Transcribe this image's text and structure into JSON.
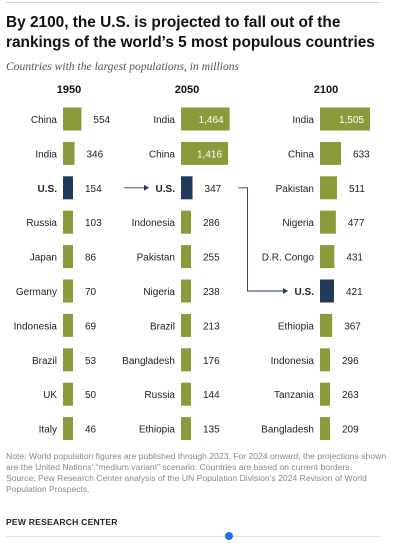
{
  "title": "By 2100, the U.S. is projected to fall out of the rankings of the world’s 5 most populous countries",
  "subtitle": "Countries with the largest populations, in millions",
  "colors": {
    "bar": "#8c9a3c",
    "us_bar": "#1f3a5c",
    "label_in_bar": "#ffffff",
    "arrow": "#1f3a5c"
  },
  "chart_data": {
    "type": "bar",
    "panels": [
      {
        "year": "1950",
        "countries": [
          "China",
          "India",
          "U.S.",
          "Russia",
          "Japan",
          "Germany",
          "Indonesia",
          "Brazil",
          "UK",
          "Italy"
        ],
        "values": [
          554,
          346,
          154,
          103,
          86,
          70,
          69,
          53,
          50,
          46
        ]
      },
      {
        "year": "2050",
        "countries": [
          "India",
          "China",
          "U.S.",
          "Indonesia",
          "Pakistan",
          "Nigeria",
          "Brazil",
          "Bangladesh",
          "Russia",
          "Ethiopia"
        ],
        "values": [
          1464,
          1416,
          347,
          286,
          255,
          238,
          213,
          176,
          144,
          135
        ]
      },
      {
        "year": "2100",
        "countries": [
          "India",
          "China",
          "Pakistan",
          "Nigeria",
          "D.R. Congo",
          "U.S.",
          "Ethiopia",
          "Indonesia",
          "Tanzania",
          "Bangladesh"
        ],
        "values": [
          1505,
          633,
          511,
          477,
          431,
          421,
          367,
          296,
          263,
          209
        ]
      }
    ],
    "highlight": "U.S."
  },
  "note": "Note: World population figures are published through 2023. For 2024 onward, the projections shown are the United Nations’ “medium variant” scenario. Countries are based on current borders.",
  "source": "Source: Pew Research Center analysis of the UN Population Division’s 2024 Revision of World Population Prospects.",
  "brand": "PEW RESEARCH CENTER"
}
